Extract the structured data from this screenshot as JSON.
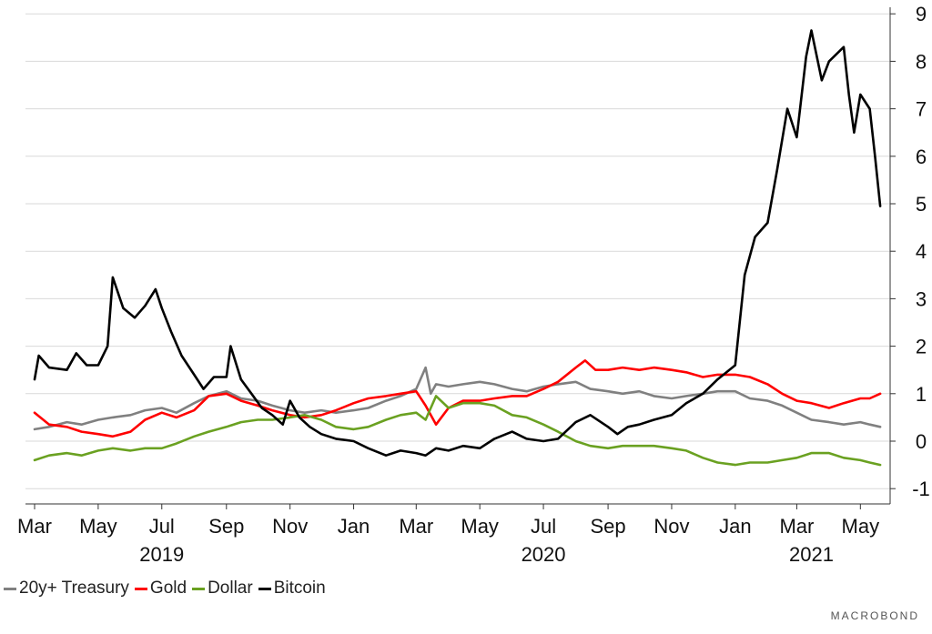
{
  "chart_data": {
    "type": "line",
    "title": "",
    "xlabel": "",
    "ylabel": "",
    "ylim": [
      -1.3,
      9.3
    ],
    "y_ticks": [
      -1,
      0,
      1,
      2,
      3,
      4,
      5,
      6,
      7,
      8,
      9
    ],
    "y_axis_side": "right",
    "grid": "horizontal",
    "legend_position": "bottom-left",
    "x_range": [
      "2019-03-01",
      "2021-05-20"
    ],
    "x_tick_labels": [
      {
        "date": "2019-03-01",
        "label": "Mar"
      },
      {
        "date": "2019-05-01",
        "label": "May"
      },
      {
        "date": "2019-07-01",
        "label": "Jul"
      },
      {
        "date": "2019-09-01",
        "label": "Sep"
      },
      {
        "date": "2019-11-01",
        "label": "Nov"
      },
      {
        "date": "2020-01-01",
        "label": "Jan"
      },
      {
        "date": "2020-03-01",
        "label": "Mar"
      },
      {
        "date": "2020-05-01",
        "label": "May"
      },
      {
        "date": "2020-07-01",
        "label": "Jul"
      },
      {
        "date": "2020-09-01",
        "label": "Sep"
      },
      {
        "date": "2020-11-01",
        "label": "Nov"
      },
      {
        "date": "2021-01-01",
        "label": "Jan"
      },
      {
        "date": "2021-03-01",
        "label": "Mar"
      },
      {
        "date": "2021-05-01",
        "label": "May"
      }
    ],
    "year_labels": [
      {
        "date": "2019-07-01",
        "label": "2019"
      },
      {
        "date": "2020-07-01",
        "label": "2020"
      },
      {
        "date": "2021-03-15",
        "label": "2021"
      }
    ],
    "series": [
      {
        "name": "20y+ Treasury",
        "color": "#808080",
        "points": [
          [
            "2019-03-01",
            0.25
          ],
          [
            "2019-03-15",
            0.3
          ],
          [
            "2019-04-01",
            0.4
          ],
          [
            "2019-04-15",
            0.35
          ],
          [
            "2019-05-01",
            0.45
          ],
          [
            "2019-05-15",
            0.5
          ],
          [
            "2019-06-01",
            0.55
          ],
          [
            "2019-06-15",
            0.65
          ],
          [
            "2019-07-01",
            0.7
          ],
          [
            "2019-07-15",
            0.6
          ],
          [
            "2019-08-01",
            0.8
          ],
          [
            "2019-08-15",
            0.95
          ],
          [
            "2019-09-01",
            1.05
          ],
          [
            "2019-09-15",
            0.9
          ],
          [
            "2019-10-01",
            0.85
          ],
          [
            "2019-10-15",
            0.75
          ],
          [
            "2019-11-01",
            0.65
          ],
          [
            "2019-11-15",
            0.6
          ],
          [
            "2019-12-01",
            0.65
          ],
          [
            "2019-12-15",
            0.6
          ],
          [
            "2020-01-01",
            0.65
          ],
          [
            "2020-01-15",
            0.7
          ],
          [
            "2020-02-01",
            0.85
          ],
          [
            "2020-02-15",
            0.95
          ],
          [
            "2020-03-01",
            1.1
          ],
          [
            "2020-03-10",
            1.55
          ],
          [
            "2020-03-15",
            1.0
          ],
          [
            "2020-03-20",
            1.2
          ],
          [
            "2020-04-01",
            1.15
          ],
          [
            "2020-04-15",
            1.2
          ],
          [
            "2020-05-01",
            1.25
          ],
          [
            "2020-05-15",
            1.2
          ],
          [
            "2020-06-01",
            1.1
          ],
          [
            "2020-06-15",
            1.05
          ],
          [
            "2020-07-01",
            1.15
          ],
          [
            "2020-07-15",
            1.2
          ],
          [
            "2020-08-01",
            1.25
          ],
          [
            "2020-08-15",
            1.1
          ],
          [
            "2020-09-01",
            1.05
          ],
          [
            "2020-09-15",
            1.0
          ],
          [
            "2020-10-01",
            1.05
          ],
          [
            "2020-10-15",
            0.95
          ],
          [
            "2020-11-01",
            0.9
          ],
          [
            "2020-11-15",
            0.95
          ],
          [
            "2020-12-01",
            1.0
          ],
          [
            "2020-12-15",
            1.05
          ],
          [
            "2021-01-01",
            1.05
          ],
          [
            "2021-01-15",
            0.9
          ],
          [
            "2021-02-01",
            0.85
          ],
          [
            "2021-02-15",
            0.75
          ],
          [
            "2021-03-01",
            0.6
          ],
          [
            "2021-03-15",
            0.45
          ],
          [
            "2021-04-01",
            0.4
          ],
          [
            "2021-04-15",
            0.35
          ],
          [
            "2021-05-01",
            0.4
          ],
          [
            "2021-05-10",
            0.35
          ],
          [
            "2021-05-20",
            0.3
          ]
        ]
      },
      {
        "name": "Gold",
        "color": "#ff0000",
        "points": [
          [
            "2019-03-01",
            0.6
          ],
          [
            "2019-03-15",
            0.35
          ],
          [
            "2019-04-01",
            0.3
          ],
          [
            "2019-04-15",
            0.2
          ],
          [
            "2019-05-01",
            0.15
          ],
          [
            "2019-05-15",
            0.1
          ],
          [
            "2019-06-01",
            0.2
          ],
          [
            "2019-06-15",
            0.45
          ],
          [
            "2019-07-01",
            0.6
          ],
          [
            "2019-07-15",
            0.5
          ],
          [
            "2019-08-01",
            0.65
          ],
          [
            "2019-08-15",
            0.95
          ],
          [
            "2019-09-01",
            1.0
          ],
          [
            "2019-09-15",
            0.85
          ],
          [
            "2019-10-01",
            0.75
          ],
          [
            "2019-10-15",
            0.65
          ],
          [
            "2019-11-01",
            0.55
          ],
          [
            "2019-11-15",
            0.5
          ],
          [
            "2019-12-01",
            0.55
          ],
          [
            "2019-12-15",
            0.65
          ],
          [
            "2020-01-01",
            0.8
          ],
          [
            "2020-01-15",
            0.9
          ],
          [
            "2020-02-01",
            0.95
          ],
          [
            "2020-02-15",
            1.0
          ],
          [
            "2020-03-01",
            1.05
          ],
          [
            "2020-03-10",
            0.75
          ],
          [
            "2020-03-20",
            0.35
          ],
          [
            "2020-04-01",
            0.7
          ],
          [
            "2020-04-15",
            0.85
          ],
          [
            "2020-05-01",
            0.85
          ],
          [
            "2020-05-15",
            0.9
          ],
          [
            "2020-06-01",
            0.95
          ],
          [
            "2020-06-15",
            0.95
          ],
          [
            "2020-07-01",
            1.1
          ],
          [
            "2020-07-15",
            1.25
          ],
          [
            "2020-08-01",
            1.55
          ],
          [
            "2020-08-10",
            1.7
          ],
          [
            "2020-08-20",
            1.5
          ],
          [
            "2020-09-01",
            1.5
          ],
          [
            "2020-09-15",
            1.55
          ],
          [
            "2020-10-01",
            1.5
          ],
          [
            "2020-10-15",
            1.55
          ],
          [
            "2020-11-01",
            1.5
          ],
          [
            "2020-11-15",
            1.45
          ],
          [
            "2020-12-01",
            1.35
          ],
          [
            "2020-12-15",
            1.4
          ],
          [
            "2021-01-01",
            1.4
          ],
          [
            "2021-01-15",
            1.35
          ],
          [
            "2021-02-01",
            1.2
          ],
          [
            "2021-02-15",
            1.0
          ],
          [
            "2021-03-01",
            0.85
          ],
          [
            "2021-03-15",
            0.8
          ],
          [
            "2021-04-01",
            0.7
          ],
          [
            "2021-04-15",
            0.8
          ],
          [
            "2021-05-01",
            0.9
          ],
          [
            "2021-05-10",
            0.9
          ],
          [
            "2021-05-20",
            1.0
          ]
        ]
      },
      {
        "name": "Dollar",
        "color": "#6aa121",
        "points": [
          [
            "2019-03-01",
            -0.4
          ],
          [
            "2019-03-15",
            -0.3
          ],
          [
            "2019-04-01",
            -0.25
          ],
          [
            "2019-04-15",
            -0.3
          ],
          [
            "2019-05-01",
            -0.2
          ],
          [
            "2019-05-15",
            -0.15
          ],
          [
            "2019-06-01",
            -0.2
          ],
          [
            "2019-06-15",
            -0.15
          ],
          [
            "2019-07-01",
            -0.15
          ],
          [
            "2019-07-15",
            -0.05
          ],
          [
            "2019-08-01",
            0.1
          ],
          [
            "2019-08-15",
            0.2
          ],
          [
            "2019-09-01",
            0.3
          ],
          [
            "2019-09-15",
            0.4
          ],
          [
            "2019-10-01",
            0.45
          ],
          [
            "2019-10-15",
            0.45
          ],
          [
            "2019-11-01",
            0.5
          ],
          [
            "2019-11-15",
            0.55
          ],
          [
            "2019-12-01",
            0.45
          ],
          [
            "2019-12-15",
            0.3
          ],
          [
            "2020-01-01",
            0.25
          ],
          [
            "2020-01-15",
            0.3
          ],
          [
            "2020-02-01",
            0.45
          ],
          [
            "2020-02-15",
            0.55
          ],
          [
            "2020-03-01",
            0.6
          ],
          [
            "2020-03-10",
            0.45
          ],
          [
            "2020-03-20",
            0.95
          ],
          [
            "2020-04-01",
            0.7
          ],
          [
            "2020-04-15",
            0.8
          ],
          [
            "2020-05-01",
            0.8
          ],
          [
            "2020-05-15",
            0.75
          ],
          [
            "2020-06-01",
            0.55
          ],
          [
            "2020-06-15",
            0.5
          ],
          [
            "2020-07-01",
            0.35
          ],
          [
            "2020-07-15",
            0.2
          ],
          [
            "2020-08-01",
            0.0
          ],
          [
            "2020-08-15",
            -0.1
          ],
          [
            "2020-09-01",
            -0.15
          ],
          [
            "2020-09-15",
            -0.1
          ],
          [
            "2020-10-01",
            -0.1
          ],
          [
            "2020-10-15",
            -0.1
          ],
          [
            "2020-11-01",
            -0.15
          ],
          [
            "2020-11-15",
            -0.2
          ],
          [
            "2020-12-01",
            -0.35
          ],
          [
            "2020-12-15",
            -0.45
          ],
          [
            "2021-01-01",
            -0.5
          ],
          [
            "2021-01-15",
            -0.45
          ],
          [
            "2021-02-01",
            -0.45
          ],
          [
            "2021-02-15",
            -0.4
          ],
          [
            "2021-03-01",
            -0.35
          ],
          [
            "2021-03-15",
            -0.25
          ],
          [
            "2021-04-01",
            -0.25
          ],
          [
            "2021-04-15",
            -0.35
          ],
          [
            "2021-05-01",
            -0.4
          ],
          [
            "2021-05-10",
            -0.45
          ],
          [
            "2021-05-20",
            -0.5
          ]
        ]
      },
      {
        "name": "Bitcoin",
        "color": "#000000",
        "points": [
          [
            "2019-03-01",
            1.3
          ],
          [
            "2019-03-05",
            1.8
          ],
          [
            "2019-03-15",
            1.55
          ],
          [
            "2019-04-01",
            1.5
          ],
          [
            "2019-04-10",
            1.85
          ],
          [
            "2019-04-20",
            1.6
          ],
          [
            "2019-05-01",
            1.6
          ],
          [
            "2019-05-10",
            2.0
          ],
          [
            "2019-05-15",
            3.45
          ],
          [
            "2019-05-25",
            2.8
          ],
          [
            "2019-06-05",
            2.6
          ],
          [
            "2019-06-15",
            2.85
          ],
          [
            "2019-06-25",
            3.2
          ],
          [
            "2019-07-01",
            2.8
          ],
          [
            "2019-07-10",
            2.3
          ],
          [
            "2019-07-20",
            1.8
          ],
          [
            "2019-08-01",
            1.4
          ],
          [
            "2019-08-10",
            1.1
          ],
          [
            "2019-08-20",
            1.35
          ],
          [
            "2019-09-01",
            1.35
          ],
          [
            "2019-09-05",
            2.0
          ],
          [
            "2019-09-15",
            1.3
          ],
          [
            "2019-09-25",
            1.0
          ],
          [
            "2019-10-05",
            0.7
          ],
          [
            "2019-10-15",
            0.55
          ],
          [
            "2019-10-25",
            0.35
          ],
          [
            "2019-11-01",
            0.85
          ],
          [
            "2019-11-10",
            0.5
          ],
          [
            "2019-11-20",
            0.3
          ],
          [
            "2019-12-01",
            0.15
          ],
          [
            "2019-12-15",
            0.05
          ],
          [
            "2020-01-01",
            0.0
          ],
          [
            "2020-01-15",
            -0.15
          ],
          [
            "2020-02-01",
            -0.3
          ],
          [
            "2020-02-15",
            -0.2
          ],
          [
            "2020-03-01",
            -0.25
          ],
          [
            "2020-03-10",
            -0.3
          ],
          [
            "2020-03-20",
            -0.15
          ],
          [
            "2020-04-01",
            -0.2
          ],
          [
            "2020-04-15",
            -0.1
          ],
          [
            "2020-05-01",
            -0.15
          ],
          [
            "2020-05-15",
            0.05
          ],
          [
            "2020-06-01",
            0.2
          ],
          [
            "2020-06-15",
            0.05
          ],
          [
            "2020-07-01",
            0.0
          ],
          [
            "2020-07-15",
            0.05
          ],
          [
            "2020-08-01",
            0.4
          ],
          [
            "2020-08-15",
            0.55
          ],
          [
            "2020-09-01",
            0.3
          ],
          [
            "2020-09-10",
            0.15
          ],
          [
            "2020-09-20",
            0.3
          ],
          [
            "2020-10-01",
            0.35
          ],
          [
            "2020-10-15",
            0.45
          ],
          [
            "2020-11-01",
            0.55
          ],
          [
            "2020-11-15",
            0.8
          ],
          [
            "2020-12-01",
            1.0
          ],
          [
            "2020-12-15",
            1.3
          ],
          [
            "2021-01-01",
            1.6
          ],
          [
            "2021-01-10",
            3.5
          ],
          [
            "2021-01-20",
            4.3
          ],
          [
            "2021-02-01",
            4.6
          ],
          [
            "2021-02-10",
            5.7
          ],
          [
            "2021-02-20",
            7.0
          ],
          [
            "2021-03-01",
            6.4
          ],
          [
            "2021-03-10",
            8.1
          ],
          [
            "2021-03-15",
            8.65
          ],
          [
            "2021-03-25",
            7.6
          ],
          [
            "2021-04-01",
            8.0
          ],
          [
            "2021-04-15",
            8.3
          ],
          [
            "2021-04-20",
            7.3
          ],
          [
            "2021-04-25",
            6.5
          ],
          [
            "2021-05-01",
            7.3
          ],
          [
            "2021-05-10",
            7.0
          ],
          [
            "2021-05-15",
            6.0
          ],
          [
            "2021-05-20",
            4.95
          ]
        ]
      }
    ]
  },
  "legend": {
    "items": [
      {
        "label": "20y+ Treasury",
        "color": "#808080"
      },
      {
        "label": "Gold",
        "color": "#ff0000"
      },
      {
        "label": "Dollar",
        "color": "#6aa121"
      },
      {
        "label": "Bitcoin",
        "color": "#000000"
      }
    ]
  },
  "watermark": "MACROBOND"
}
